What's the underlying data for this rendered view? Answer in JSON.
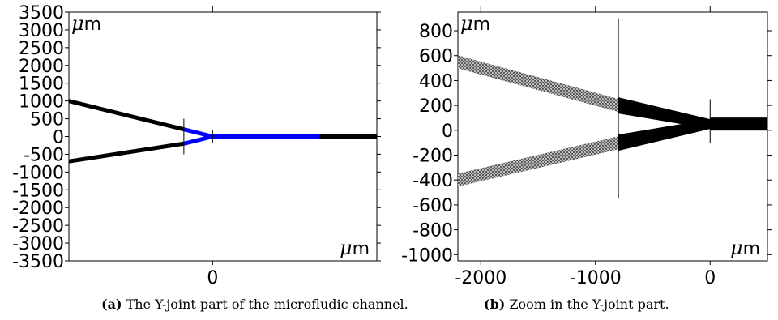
{
  "chart_data": [
    {
      "type": "diagram",
      "unit_label": {
        "mu": "μ",
        "m": "m"
      },
      "yticks": [
        3500,
        3000,
        2500,
        2000,
        1500,
        1000,
        500,
        0,
        -500,
        -1000,
        -1500,
        -2000,
        -2500,
        -3000,
        -3500
      ],
      "xticks": [
        0
      ],
      "ylim": [
        -3500,
        3500
      ],
      "xlim": [
        -3500,
        4000
      ],
      "channel": {
        "upper_inlet": [
          [
            -3500,
            1000
          ],
          [
            -700,
            200
          ]
        ],
        "lower_inlet": [
          [
            -3500,
            -700
          ],
          [
            -700,
            -200
          ]
        ],
        "joint_upper": [
          [
            -700,
            200
          ],
          [
            0,
            0
          ]
        ],
        "joint_lower": [
          [
            -700,
            -200
          ],
          [
            0,
            0
          ]
        ],
        "main_highlight": [
          [
            0,
            0
          ],
          [
            2600,
            0
          ]
        ],
        "outlet": [
          [
            2600,
            0
          ],
          [
            4000,
            0
          ]
        ]
      },
      "marker_x": [
        -700,
        0
      ],
      "colors": {
        "channel": "#000000",
        "highlight": "#0000ff"
      },
      "caption": {
        "label": "(a)",
        "text": " The Y-joint part of the microfludic channel."
      }
    },
    {
      "type": "diagram",
      "unit_label": {
        "mu": "μ",
        "m": "m"
      },
      "yticks": [
        800,
        600,
        400,
        200,
        0,
        -200,
        -400,
        -600,
        -800,
        -1000
      ],
      "xticks": [
        -2000,
        -1000,
        0
      ],
      "ylim": [
        -1050,
        950
      ],
      "xlim": [
        -2200,
        500
      ],
      "channel": {
        "upper_inlet": [
          [
            -2200,
            550
          ],
          [
            -800,
            200
          ]
        ],
        "lower_inlet": [
          [
            -2200,
            -400
          ],
          [
            -800,
            -100
          ]
        ],
        "main": [
          [
            0,
            50
          ],
          [
            500,
            50
          ]
        ]
      },
      "marker_x": [
        -800,
        0
      ],
      "colors": {
        "channel": "#000000"
      },
      "caption": {
        "label": "(b)",
        "text": " Zoom in the Y-joint part."
      }
    }
  ]
}
